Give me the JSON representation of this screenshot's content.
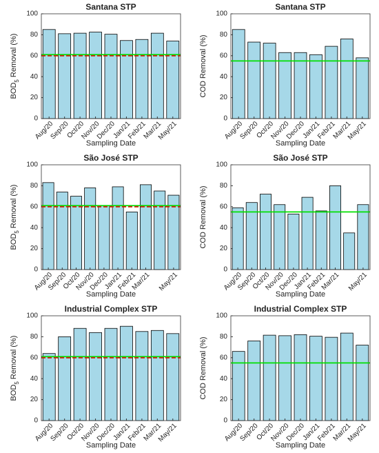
{
  "chart_data": [
    {
      "type": "bar",
      "title": "Santana STP",
      "ylabel": [
        "BOD",
        "5",
        " Removal (%)"
      ],
      "xlabel": "Sampling Date",
      "categories": [
        "Aug/20",
        "Sep/20",
        "Oct/20",
        "Nov/20",
        "Dec/20",
        "Jan/21",
        "Feb/21",
        "Mar/21",
        "May/21"
      ],
      "values": [
        85,
        81,
        81.5,
        82.5,
        80.5,
        74.5,
        75.5,
        81.5,
        74
      ],
      "color": "#a6d8e8",
      "ylim": [
        0,
        100
      ],
      "yticks": [
        0,
        20,
        40,
        60,
        80,
        100
      ],
      "reference_lines": [
        {
          "value": 61,
          "color": "#00e000",
          "style": "solid"
        },
        {
          "value": 60,
          "color": "#cc2200",
          "style": "dashed"
        }
      ]
    },
    {
      "type": "bar",
      "title": "Santana STP",
      "ylabel": "COD Removal (%)",
      "xlabel": "Sampling Date",
      "categories": [
        "Aug/20",
        "Sep/20",
        "Oct/20",
        "Nov/20",
        "Dec/20",
        "Jan/21",
        "Feb/21",
        "Mar/21",
        "May/21"
      ],
      "values": [
        85,
        73,
        72,
        63,
        63,
        61,
        69,
        76,
        58
      ],
      "color": "#a6d8e8",
      "ylim": [
        0,
        100
      ],
      "yticks": [
        0,
        20,
        40,
        60,
        80,
        100
      ],
      "reference_lines": [
        {
          "value": 55,
          "color": "#00e000",
          "style": "solid"
        }
      ]
    },
    {
      "type": "bar",
      "title": "São José STP",
      "ylabel": [
        "BOD",
        "5",
        " Removal (%)"
      ],
      "xlabel": "Sampling Date",
      "categories": [
        "Aug/20",
        "Sep/20",
        "Oct/20",
        "Nov/20",
        "Dec/20",
        "Jan/21",
        "Feb/21",
        "Mar/21",
        null,
        "May/21"
      ],
      "values": [
        83,
        74,
        70,
        78,
        61,
        79,
        55,
        81,
        75,
        71
      ],
      "color": "#a6d8e8",
      "ylim": [
        0,
        100
      ],
      "yticks": [
        0,
        20,
        40,
        60,
        80,
        100
      ],
      "reference_lines": [
        {
          "value": 61,
          "color": "#00e000",
          "style": "solid"
        },
        {
          "value": 60,
          "color": "#cc2200",
          "style": "dashed"
        }
      ]
    },
    {
      "type": "bar",
      "title": "São José STP",
      "ylabel": "COD Removal (%)",
      "xlabel": "Sampling Date",
      "categories": [
        "Aug/20",
        "Sep/20",
        "Oct/20",
        "Nov/20",
        "Dec/20",
        "Jan/21",
        "Feb/21",
        "Mar/21",
        null,
        "May/21"
      ],
      "values": [
        59,
        64,
        72,
        62,
        53,
        69,
        56,
        80,
        35,
        62
      ],
      "color": "#a6d8e8",
      "ylim": [
        0,
        100
      ],
      "yticks": [
        0,
        20,
        40,
        60,
        80,
        100
      ],
      "reference_lines": [
        {
          "value": 55,
          "color": "#00e000",
          "style": "solid"
        }
      ]
    },
    {
      "type": "bar",
      "title": "Industrial Complex STP",
      "ylabel": [
        "BOD",
        "5",
        " Removal (%)"
      ],
      "xlabel": "Sampling Date",
      "categories": [
        "Aug/20",
        "Sep/20",
        "Oct/20",
        "Nov/20",
        "Dec/20",
        "Jan/21",
        "Feb/21",
        "Mar/21",
        "May/21"
      ],
      "values": [
        64,
        80,
        88,
        84,
        88,
        90,
        85,
        86,
        83
      ],
      "color": "#a6d8e8",
      "ylim": [
        0,
        100
      ],
      "yticks": [
        0,
        20,
        40,
        60,
        80,
        100
      ],
      "reference_lines": [
        {
          "value": 61,
          "color": "#00e000",
          "style": "solid"
        },
        {
          "value": 60,
          "color": "#cc2200",
          "style": "dashed"
        }
      ]
    },
    {
      "type": "bar",
      "title": "Industrial Complex STP",
      "ylabel": "COD Removal (%)",
      "xlabel": "Sampling Date",
      "categories": [
        "Aug/20",
        "Sep/20",
        "Oct/20",
        "Nov/20",
        "Dec/20",
        "Jan/21",
        "Feb/21",
        "Mar/21",
        "May/21"
      ],
      "values": [
        66,
        76,
        81.5,
        81,
        82,
        80.5,
        79.5,
        83.5,
        72
      ],
      "color": "#a6d8e8",
      "ylim": [
        0,
        100
      ],
      "yticks": [
        0,
        20,
        40,
        60,
        80,
        100
      ],
      "reference_lines": [
        {
          "value": 55,
          "color": "#00e000",
          "style": "solid"
        }
      ]
    }
  ]
}
